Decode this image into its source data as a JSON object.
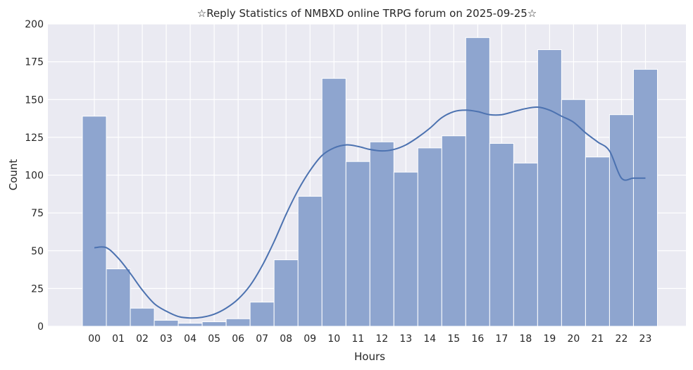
{
  "chart_data": {
    "type": "bar",
    "title": "☆Reply Statistics of NMBXD online TRPG forum on 2025-09-25☆",
    "xlabel": "Hours",
    "ylabel": "Count",
    "categories": [
      "00",
      "01",
      "02",
      "03",
      "04",
      "05",
      "06",
      "07",
      "08",
      "09",
      "10",
      "11",
      "12",
      "13",
      "14",
      "15",
      "16",
      "17",
      "18",
      "19",
      "20",
      "21",
      "22",
      "23"
    ],
    "values": [
      139,
      38,
      12,
      4,
      2,
      3,
      5,
      16,
      44,
      86,
      164,
      109,
      122,
      102,
      118,
      126,
      191,
      121,
      108,
      183,
      150,
      112,
      140,
      170
    ],
    "kde": {
      "x": [
        0,
        0.5,
        1,
        1.5,
        2,
        2.5,
        3,
        3.5,
        4,
        4.5,
        5,
        5.5,
        6,
        6.5,
        7,
        7.5,
        8,
        8.5,
        9,
        9.5,
        10,
        10.5,
        11,
        11.5,
        12,
        12.5,
        13,
        13.5,
        14,
        14.5,
        15,
        15.5,
        16,
        16.5,
        17,
        17.5,
        18,
        18.5,
        19,
        19.5,
        20,
        20.5,
        21,
        21.5,
        22,
        22.5,
        23
      ],
      "y": [
        52,
        52,
        45,
        35,
        24,
        15,
        10,
        6.5,
        5.5,
        6,
        8,
        12,
        18,
        27,
        40,
        56,
        74,
        90,
        103,
        113,
        118,
        120,
        119,
        117,
        116,
        117,
        120,
        125,
        131,
        138,
        142,
        143,
        142,
        140,
        140,
        142,
        144,
        145,
        143,
        139,
        135,
        128,
        122,
        116,
        98,
        98,
        98
      ]
    },
    "ylim": [
      0,
      200
    ],
    "yticks": [
      0,
      25,
      50,
      75,
      100,
      125,
      150,
      175,
      200
    ],
    "grid": true,
    "bar_color": "#8ea5cf",
    "line_color": "#4c72b0",
    "background": "#eaeaf2"
  }
}
